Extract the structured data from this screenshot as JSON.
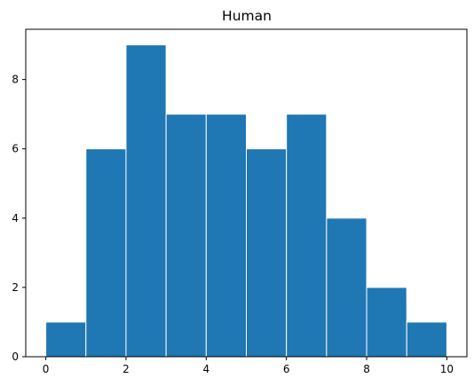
{
  "chart_data": {
    "type": "histogram",
    "title": "Human",
    "xlabel": "",
    "ylabel": "",
    "bins": [
      {
        "start": 0,
        "end": 1,
        "count": 1
      },
      {
        "start": 1,
        "end": 2,
        "count": 6
      },
      {
        "start": 2,
        "end": 3,
        "count": 9
      },
      {
        "start": 3,
        "end": 4,
        "count": 7
      },
      {
        "start": 4,
        "end": 5,
        "count": 7
      },
      {
        "start": 5,
        "end": 6,
        "count": 6
      },
      {
        "start": 6,
        "end": 7,
        "count": 7
      },
      {
        "start": 7,
        "end": 8,
        "count": 4
      },
      {
        "start": 8,
        "end": 9,
        "count": 2
      },
      {
        "start": 9,
        "end": 10,
        "count": 1
      }
    ],
    "xlim": [
      -0.5,
      10.5
    ],
    "ylim": [
      0,
      9.45
    ],
    "xticks": [
      0,
      2,
      4,
      6,
      8,
      10
    ],
    "yticks": [
      0,
      2,
      4,
      6,
      8
    ],
    "bar_color": "#1f77b4",
    "edge_color": "#ffffff",
    "grid": false
  }
}
